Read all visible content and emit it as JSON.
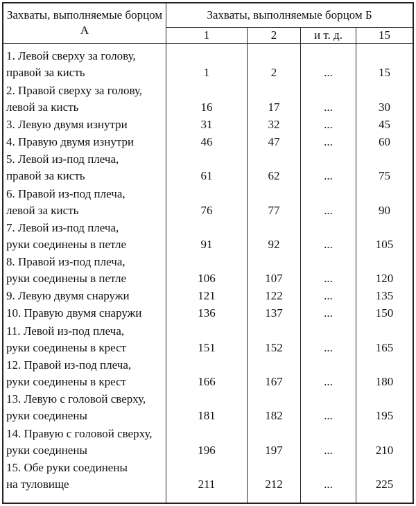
{
  "header": {
    "col_a": "Захваты, выполняемые борцом А",
    "col_b": "Захваты, выполняемые борцом Б",
    "sub": [
      "1",
      "2",
      "и т. д.",
      "15"
    ]
  },
  "rows": [
    {
      "label": [
        "1. Левой сверху за голову,",
        "правой за кисть"
      ],
      "values": [
        "1",
        "2",
        "...",
        "15"
      ]
    },
    {
      "label": [
        "2. Правой сверху за голову,",
        "левой за кисть"
      ],
      "values": [
        "16",
        "17",
        "...",
        "30"
      ]
    },
    {
      "label": [
        "3. Левую двумя изнутри"
      ],
      "values": [
        "31",
        "32",
        "...",
        "45"
      ]
    },
    {
      "label": [
        "4. Правую двумя изнутри"
      ],
      "values": [
        "46",
        "47",
        "...",
        "60"
      ]
    },
    {
      "label": [
        "5. Левой из-под плеча,",
        "правой за кисть"
      ],
      "values": [
        "61",
        "62",
        "...",
        "75"
      ]
    },
    {
      "label": [
        "6. Правой из-под плеча,",
        "левой за кисть"
      ],
      "values": [
        "76",
        "77",
        "...",
        "90"
      ]
    },
    {
      "label": [
        "7. Левой из-под плеча,",
        "руки соединены в петле"
      ],
      "values": [
        "91",
        "92",
        "...",
        "105"
      ]
    },
    {
      "label": [
        "8. Правой из-под плеча,",
        "руки соединены в петле"
      ],
      "values": [
        "106",
        "107",
        "...",
        "120"
      ]
    },
    {
      "label": [
        "9. Левую двумя снаружи"
      ],
      "values": [
        "121",
        "122",
        "...",
        "135"
      ]
    },
    {
      "label": [
        "10. Правую двумя снаружи"
      ],
      "values": [
        "136",
        "137",
        "...",
        "150"
      ]
    },
    {
      "label": [
        "11. Левой из-под плеча,",
        "руки соединены в крест"
      ],
      "values": [
        "151",
        "152",
        "...",
        "165"
      ]
    },
    {
      "label": [
        "12. Правой из-под плеча,",
        "руки соединены в крест"
      ],
      "values": [
        "166",
        "167",
        "...",
        "180"
      ]
    },
    {
      "label": [
        "13. Левую с головой сверху,",
        "руки соединены"
      ],
      "values": [
        "181",
        "182",
        "...",
        "195"
      ]
    },
    {
      "label": [
        "14. Правую с головой сверху,",
        "руки соединены"
      ],
      "values": [
        "196",
        "197",
        "...",
        "210"
      ]
    },
    {
      "label": [
        "15. Обе руки соединены",
        "на туловище"
      ],
      "values": [
        "211",
        "212",
        "...",
        "225"
      ]
    }
  ]
}
